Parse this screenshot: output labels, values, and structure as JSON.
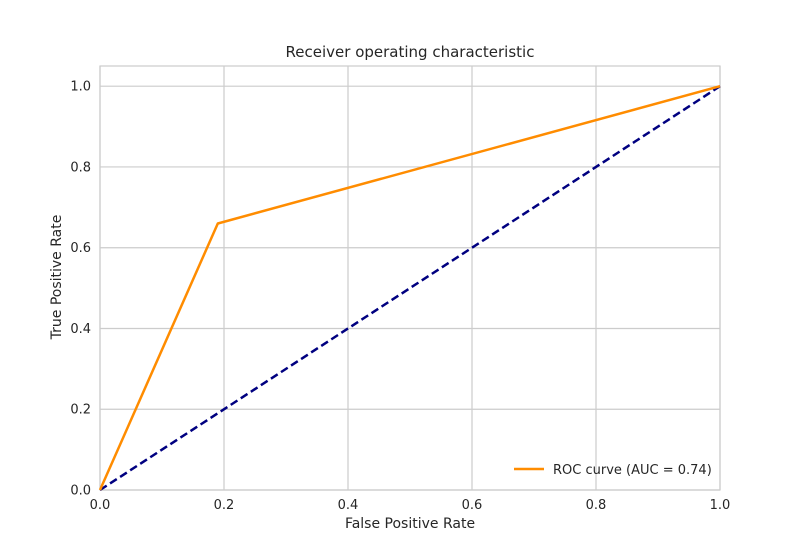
{
  "chart_data": {
    "type": "line",
    "title": "Receiver operating characteristic",
    "xlabel": "False Positive Rate",
    "ylabel": "True Positive Rate",
    "xlim": [
      0.0,
      1.0
    ],
    "ylim": [
      0.0,
      1.05
    ],
    "x_ticks": [
      "0.0",
      "0.2",
      "0.4",
      "0.6",
      "0.8",
      "1.0"
    ],
    "y_ticks": [
      "0.0",
      "0.2",
      "0.4",
      "0.6",
      "0.8",
      "1.0"
    ],
    "x_tick_values": [
      0.0,
      0.2,
      0.4,
      0.6,
      0.8,
      1.0
    ],
    "y_tick_values": [
      0.0,
      0.2,
      0.4,
      0.6,
      0.8,
      1.0
    ],
    "grid": true,
    "legend_position": "lower-right",
    "series": [
      {
        "name": "ROC curve (AUC = 0.74)",
        "color": "#ff8c00",
        "style": "solid",
        "x": [
          0.0,
          0.19,
          1.0
        ],
        "y": [
          0.0,
          0.66,
          1.0
        ]
      },
      {
        "color": "#000080",
        "style": "dashed",
        "x": [
          0.0,
          1.0
        ],
        "y": [
          0.0,
          1.0
        ]
      }
    ]
  }
}
